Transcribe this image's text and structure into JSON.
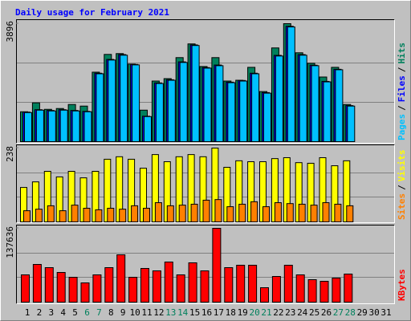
{
  "title": "Daily usage for February 2021",
  "legend_separator": "/",
  "chart_data": [
    {
      "type": "bar",
      "categories": [
        "1",
        "2",
        "3",
        "4",
        "5",
        "6",
        "7",
        "8",
        "9",
        "10",
        "11",
        "12",
        "13",
        "14",
        "15",
        "16",
        "17",
        "18",
        "19",
        "20",
        "21",
        "22",
        "23",
        "24",
        "25",
        "26",
        "27",
        "28",
        "29",
        "30",
        "31"
      ],
      "category_colors": [
        "#000000",
        "#000000",
        "#000000",
        "#000000",
        "#000000",
        "#00805c",
        "#00805c",
        "#000000",
        "#000000",
        "#000000",
        "#000000",
        "#000000",
        "#00805c",
        "#00805c",
        "#000000",
        "#000000",
        "#000000",
        "#000000",
        "#000000",
        "#00805c",
        "#00805c",
        "#000000",
        "#000000",
        "#000000",
        "#000000",
        "#000000",
        "#00805c",
        "#00805c",
        "#000000",
        "#000000",
        "#000000"
      ],
      "ylim": [
        0,
        3896
      ],
      "yticks": [
        3896
      ],
      "series": [
        {
          "name": "Hits",
          "color": "#00805c",
          "values": [
            987,
            1281,
            1067,
            1094,
            1227,
            1174,
            2294,
            2881,
            2908,
            2561,
            1040,
            2001,
            2081,
            2775,
            3228,
            2481,
            2775,
            2001,
            2027,
            2454,
            1654,
            3095,
            3896,
            2935,
            2588,
            2134,
            2454,
            1227,
            null,
            null,
            null
          ]
        },
        {
          "name": "Files",
          "color": "#0000ff",
          "values": [
            975,
            1055,
            1030,
            1055,
            1030,
            1000,
            2260,
            2715,
            2875,
            2550,
            840,
            1940,
            2045,
            2635,
            3195,
            2445,
            2530,
            1965,
            2020,
            2260,
            1620,
            2850,
            3810,
            2875,
            2525,
            1990,
            2390,
            1190,
            null,
            null,
            null
          ]
        },
        {
          "name": "Pages",
          "color": "#00c0ff",
          "values": [
            960,
            1040,
            1014,
            1040,
            1014,
            987,
            2241,
            2695,
            2855,
            2535,
            827,
            1921,
            2027,
            2615,
            3175,
            2428,
            2508,
            1947,
            2001,
            2241,
            1601,
            2828,
            3788,
            2855,
            2508,
            1974,
            2374,
            1174,
            null,
            null,
            null
          ]
        }
      ]
    },
    {
      "type": "bar",
      "ylim": [
        0,
        238
      ],
      "yticks": [
        238
      ],
      "series": [
        {
          "name": "Visits",
          "color": "#ffff00",
          "values": [
            111,
            129,
            163,
            145,
            163,
            142,
            163,
            202,
            210,
            202,
            173,
            217,
            194,
            210,
            217,
            210,
            238,
            176,
            197,
            194,
            194,
            204,
            207,
            191,
            189,
            207,
            181,
            197,
            null,
            null,
            null
          ]
        },
        {
          "name": "Sites",
          "color": "#ff8000",
          "values": [
            36,
            41,
            52,
            36,
            54,
            44,
            39,
            44,
            41,
            52,
            44,
            62,
            52,
            54,
            57,
            70,
            72,
            49,
            57,
            65,
            49,
            62,
            59,
            57,
            54,
            62,
            57,
            52,
            null,
            null,
            null
          ]
        }
      ]
    },
    {
      "type": "bar",
      "ylim": [
        0,
        137636
      ],
      "yticks": [
        137636
      ],
      "series": [
        {
          "name": "KBytes",
          "color": "#ff0000",
          "values": [
            50864,
            70312,
            64328,
            55352,
            46376,
            35904,
            50864,
            64328,
            88264,
            46376,
            62832,
            58344,
            74800,
            50864,
            73304,
            58344,
            137636,
            64328,
            68816,
            68816,
            26928,
            47872,
            68816,
            50864,
            41888,
            38896,
            44880,
            52360,
            null,
            null,
            null
          ]
        }
      ]
    }
  ]
}
